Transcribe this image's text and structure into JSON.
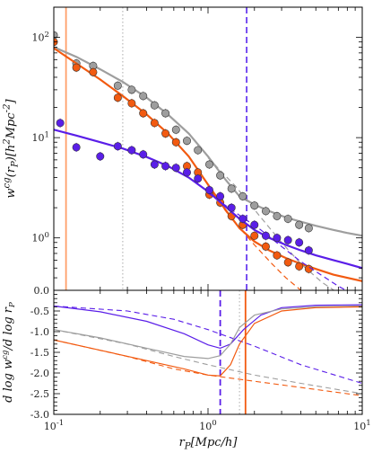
{
  "chart_data": [
    {
      "type": "line",
      "panel": "top",
      "xscale": "log",
      "yscale": "log",
      "xlim": [
        0.1,
        10
      ],
      "ylim": [
        0.3,
        200
      ],
      "ylabel": "w^{cg}(r_P)[h^2Mpc^{-2}]",
      "xticks": [
        0.1,
        1,
        10
      ],
      "xtick_labels": [
        "",
        "",
        ""
      ],
      "yticks": [
        1,
        10,
        100
      ],
      "ytick_labels": [
        "10^0",
        "10^1",
        "10^2"
      ],
      "vlines": [
        {
          "x": 0.12,
          "color": "#ff9f6a",
          "style": "solid"
        },
        {
          "x": 0.28,
          "color": "#aaaaaa",
          "style": "dotted"
        },
        {
          "x": 1.78,
          "color": "#6a3df0",
          "style": "dashed"
        }
      ],
      "series": [
        {
          "color": "#9e9e9e",
          "points_x": [
            0.1,
            0.14,
            0.18,
            0.26,
            0.32,
            0.38,
            0.45,
            0.53,
            0.62,
            0.73,
            0.86,
            1.02,
            1.2,
            1.42,
            1.68,
            2.0,
            2.37,
            2.8,
            3.3,
            3.9,
            4.5
          ],
          "points_y": [
            105,
            55,
            52,
            33,
            30,
            26,
            21,
            17.5,
            12,
            9.3,
            7.5,
            5.4,
            4.2,
            3.1,
            2.6,
            2.1,
            1.85,
            1.65,
            1.55,
            1.35,
            1.25
          ],
          "fit_x": [
            0.1,
            0.14,
            0.2,
            0.28,
            0.4,
            0.55,
            0.75,
            1.0,
            1.3,
            1.6,
            2.0,
            2.5,
            3.2,
            4.0,
            5.0,
            6.5,
            8.0,
            10.0
          ],
          "fit_y": [
            80,
            64,
            48,
            36,
            25,
            17,
            11,
            6.5,
            3.8,
            2.6,
            2.15,
            1.85,
            1.6,
            1.45,
            1.32,
            1.2,
            1.12,
            1.05
          ],
          "dashed_x": [
            1.0,
            1.5,
            2.2,
            3.0,
            4.0,
            5.5,
            7.0
          ],
          "dashed_y": [
            6.3,
            3.3,
            1.6,
            0.9,
            0.55,
            0.36,
            0.28
          ]
        },
        {
          "color": "#f25a10",
          "points_x": [
            0.1,
            0.14,
            0.18,
            0.26,
            0.32,
            0.38,
            0.45,
            0.53,
            0.62,
            0.73,
            0.86,
            1.02,
            1.2,
            1.42,
            1.68,
            2.0,
            2.37,
            2.8,
            3.3,
            3.9,
            4.5
          ],
          "points_y": [
            90,
            50,
            45,
            25,
            22,
            17.5,
            14,
            11,
            9,
            5.2,
            4.5,
            2.7,
            2.25,
            1.65,
            1.35,
            1.05,
            0.82,
            0.67,
            0.57,
            0.52,
            0.49
          ],
          "fit_x": [
            0.1,
            0.14,
            0.2,
            0.28,
            0.4,
            0.55,
            0.75,
            1.0,
            1.3,
            1.6,
            2.0,
            2.5,
            3.2,
            4.0,
            5.0,
            6.5,
            8.0,
            10.0
          ],
          "fit_y": [
            78,
            55,
            38,
            26,
            17,
            11,
            6.5,
            3.4,
            1.9,
            1.25,
            0.92,
            0.75,
            0.63,
            0.55,
            0.49,
            0.43,
            0.4,
            0.37
          ],
          "dashed_x": [
            1.0,
            1.4,
            2.0,
            2.6,
            3.2,
            4.0
          ],
          "dashed_y": [
            3.2,
            1.6,
            0.85,
            0.55,
            0.4,
            0.3
          ]
        },
        {
          "color": "#5a1ee8",
          "points_x": [
            0.11,
            0.14,
            0.2,
            0.26,
            0.32,
            0.38,
            0.45,
            0.53,
            0.62,
            0.73,
            0.86,
            1.02,
            1.2,
            1.42,
            1.68,
            2.0,
            2.37,
            2.8,
            3.3,
            3.9,
            4.5
          ],
          "points_y": [
            14,
            8.0,
            6.5,
            8.2,
            7.5,
            6.8,
            5.4,
            5.2,
            5.0,
            4.5,
            3.9,
            3.0,
            2.6,
            2.0,
            1.55,
            1.35,
            1.05,
            1.0,
            0.95,
            0.9,
            0.75
          ],
          "fit_x": [
            0.1,
            0.14,
            0.2,
            0.28,
            0.4,
            0.55,
            0.75,
            1.0,
            1.3,
            1.6,
            2.0,
            2.5,
            3.2,
            4.0,
            5.0,
            6.5,
            8.0,
            10.0
          ],
          "fit_y": [
            12,
            10.5,
            9.0,
            7.8,
            6.4,
            5.2,
            4.0,
            2.9,
            2.05,
            1.55,
            1.2,
            1.0,
            0.85,
            0.75,
            0.67,
            0.6,
            0.55,
            0.5
          ],
          "dashed_x": [
            1.0,
            1.5,
            2.2,
            3.0,
            4.0,
            5.5,
            7.0,
            8.5
          ],
          "dashed_y": [
            2.8,
            1.8,
            1.2,
            0.82,
            0.58,
            0.42,
            0.33,
            0.28
          ]
        }
      ]
    },
    {
      "type": "line",
      "panel": "bottom",
      "xscale": "log",
      "xlim": [
        0.1,
        10
      ],
      "ylim": [
        -3.0,
        0.0
      ],
      "xlabel": "r_P[Mpc/h]",
      "ylabel": "d log w^{cg}/d log r_P",
      "xticks": [
        0.1,
        1,
        10
      ],
      "xtick_labels": [
        "10^{-1}",
        "10^0",
        "10^1"
      ],
      "yticks": [
        0.0,
        -0.5,
        -1.0,
        -1.5,
        -2.0,
        -2.5,
        -3.0
      ],
      "ytick_labels": [
        "0.0",
        "-0.5",
        "-1.0",
        "-1.5",
        "-2.0",
        "-2.5",
        "-3.0"
      ],
      "vlines": [
        {
          "x": 1.2,
          "color": "#5a1ee8",
          "style": "dashed"
        },
        {
          "x": 1.6,
          "color": "#aaaaaa",
          "style": "dotted"
        },
        {
          "x": 1.75,
          "color": "#f25a10",
          "style": "solid"
        }
      ],
      "series": [
        {
          "color": "#5a1ee8",
          "solid_x": [
            0.1,
            0.2,
            0.4,
            0.7,
            1.0,
            1.2,
            1.4,
            1.7,
            2.2,
            3.0,
            5.0,
            10.0
          ],
          "solid_y": [
            -0.38,
            -0.52,
            -0.75,
            -1.05,
            -1.32,
            -1.4,
            -1.3,
            -0.95,
            -0.6,
            -0.42,
            -0.36,
            -0.35
          ],
          "dashed_x": [
            0.1,
            0.3,
            0.6,
            1.0,
            2.0,
            4.0,
            10.0
          ],
          "dashed_y": [
            -0.38,
            -0.5,
            -0.7,
            -0.95,
            -1.35,
            -1.8,
            -2.25
          ]
        },
        {
          "color": "#9e9e9e",
          "solid_x": [
            0.1,
            0.2,
            0.4,
            0.7,
            1.0,
            1.2,
            1.4,
            1.6,
            2.0,
            3.0,
            5.0,
            10.0
          ],
          "solid_y": [
            -0.95,
            -1.15,
            -1.4,
            -1.6,
            -1.65,
            -1.58,
            -1.3,
            -0.9,
            -0.6,
            -0.45,
            -0.4,
            -0.38
          ],
          "dashed_x": [
            0.1,
            0.3,
            0.6,
            1.0,
            2.0,
            4.0,
            10.0
          ],
          "dashed_y": [
            -0.95,
            -1.3,
            -1.6,
            -1.8,
            -2.05,
            -2.25,
            -2.5
          ]
        },
        {
          "color": "#f25a10",
          "solid_x": [
            0.1,
            0.2,
            0.4,
            0.7,
            1.0,
            1.2,
            1.4,
            1.6,
            2.0,
            3.0,
            5.0,
            10.0
          ],
          "solid_y": [
            -1.2,
            -1.45,
            -1.7,
            -1.9,
            -2.05,
            -2.07,
            -1.8,
            -1.3,
            -0.8,
            -0.5,
            -0.42,
            -0.4
          ],
          "dashed_x": [
            0.1,
            0.3,
            0.6,
            1.0,
            2.0,
            4.0,
            10.0
          ],
          "dashed_y": [
            -1.2,
            -1.6,
            -1.9,
            -2.05,
            -2.2,
            -2.35,
            -2.55
          ]
        }
      ]
    }
  ]
}
